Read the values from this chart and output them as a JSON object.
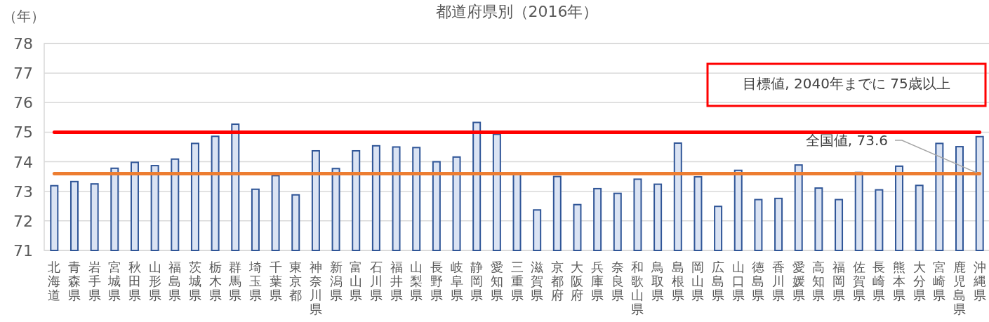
{
  "chart_data": {
    "type": "bar",
    "title": "都道府県別（2016年）",
    "ylabel": "（年）",
    "categories": [
      "北海道",
      "青森県",
      "岩手県",
      "宮城県",
      "秋田県",
      "山形県",
      "福島県",
      "茨城県",
      "栃木県",
      "群馬県",
      "埼玉県",
      "千葉県",
      "東京都",
      "神奈川県",
      "新潟県",
      "富山県",
      "石川県",
      "福井県",
      "山梨県",
      "長野県",
      "岐阜県",
      "静岡県",
      "愛知県",
      "三重県",
      "滋賀県",
      "京都府",
      "大阪府",
      "兵庫県",
      "奈良県",
      "和歌山県",
      "鳥取県",
      "島根県",
      "岡山県",
      "広島県",
      "山口県",
      "徳島県",
      "香川県",
      "愛媛県",
      "高知県",
      "福岡県",
      "佐賀県",
      "長崎県",
      "熊本県",
      "大分県",
      "宮崎県",
      "鹿児島県",
      "沖縄県"
    ],
    "series": [
      {
        "color": "#dae3f3",
        "values": [
          73.19,
          73.33,
          73.25,
          73.78,
          73.98,
          73.87,
          74.09,
          74.62,
          74.86,
          75.27,
          73.07,
          73.53,
          72.88,
          74.37,
          73.77,
          74.37,
          74.54,
          74.5,
          74.48,
          74.0,
          74.16,
          75.33,
          74.93,
          73.62,
          72.37,
          73.5,
          72.55,
          73.09,
          72.93,
          73.41,
          73.24,
          74.63,
          73.49,
          72.49,
          73.71,
          72.72,
          72.76,
          73.89,
          73.11,
          72.72,
          73.64,
          73.05,
          73.85,
          73.2,
          74.62,
          74.51,
          74.85
        ]
      }
    ],
    "ylim": [
      71,
      78
    ],
    "yticks": [
      71,
      72,
      73,
      74,
      75,
      76,
      77,
      78
    ],
    "grid": "y",
    "ref_lines": [
      {
        "axis": "y",
        "value": 75,
        "label": "目標値, 2040年までに 75歳以上",
        "color": "#ff0000"
      },
      {
        "axis": "y",
        "value": 73.6,
        "label": "全国値, 73.6",
        "color": "#ed7d31"
      }
    ]
  }
}
